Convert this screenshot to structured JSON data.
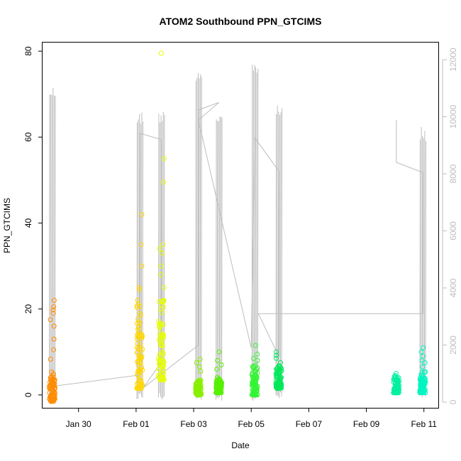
{
  "chart_data": {
    "type": "scatter",
    "title": "ATOM2 Southbound PPN_GTCIMS",
    "xlabel": "Date",
    "ylabel": "PPN_GTCIMS",
    "x_ticks": [
      "Jan 30",
      "Feb 01",
      "Feb 03",
      "Feb 05",
      "Feb 07",
      "Feb 09",
      "Feb 11"
    ],
    "x_range": [
      "2018-01-28 18:00",
      "2018-02-11 12:00"
    ],
    "y_ticks": [
      0,
      20,
      40,
      60,
      80
    ],
    "ylim": [
      -3,
      82
    ],
    "y2_ticks": [
      0,
      2000,
      4000,
      6000,
      8000,
      10000,
      12000
    ],
    "y2lim": [
      -200,
      12600
    ],
    "grid": false,
    "scatter_clusters": [
      {
        "date": "2018-01-29 02:00",
        "color": "#ff8c00",
        "min": -1.5,
        "max": 22,
        "median": 3,
        "extras": [
          22,
          20.5,
          19.8,
          19,
          17.5,
          16,
          13,
          10.5,
          8.3
        ]
      },
      {
        "date": "2018-02-01 03:00",
        "color": "#ffd700",
        "min": 1.5,
        "max": 42,
        "median": 12,
        "extras": [
          42,
          35,
          30,
          25,
          24.5,
          22,
          19,
          17
        ]
      },
      {
        "date": "2018-02-01 21:00",
        "color": "#e6ff00",
        "min": 3.5,
        "max": 79.5,
        "median": 13,
        "extras": [
          79.5,
          55,
          49.5,
          35,
          34,
          33,
          30,
          28,
          25,
          22
        ]
      },
      {
        "date": "2018-02-03 04:00",
        "color": "#88f000",
        "min": 0,
        "max": 8.5,
        "median": 2,
        "extras": [
          8.3,
          7.5,
          6.5,
          5.5
        ]
      },
      {
        "date": "2018-02-03 21:00",
        "color": "#55f000",
        "min": 0.5,
        "max": 10,
        "median": 2.5,
        "extras": [
          10,
          8,
          7,
          6
        ]
      },
      {
        "date": "2018-02-05 03:00",
        "color": "#33f533",
        "min": 0,
        "max": 11.5,
        "median": 4,
        "extras": [
          11.5,
          9.5,
          8.5,
          8
        ]
      },
      {
        "date": "2018-02-05 23:00",
        "color": "#00e85a",
        "min": 1.5,
        "max": 10,
        "median": 4,
        "extras": [
          10,
          9.2,
          8.5,
          7.5
        ]
      },
      {
        "date": "2018-02-10 01:00",
        "color": "#00f0a0",
        "min": 0.5,
        "max": 5,
        "median": 2.5,
        "extras": [
          5,
          4.5,
          4,
          3.2,
          2.4,
          1.8,
          1.2,
          0.8
        ]
      },
      {
        "date": "2018-02-10 23:00",
        "color": "#00f5c0",
        "min": 0.5,
        "max": 11,
        "median": 3,
        "extras": [
          11,
          10,
          9,
          8,
          7.5,
          6.5
        ]
      }
    ],
    "line_series": {
      "axis": "right",
      "color": "#bdbdbd",
      "spikes": [
        {
          "date": "2018-01-29 02:00",
          "peak": 11100
        },
        {
          "date": "2018-02-01 03:00",
          "peak": 10200
        },
        {
          "date": "2018-02-01 21:00",
          "peak": 10250
        },
        {
          "date": "2018-02-03 04:00",
          "peak": 11750
        },
        {
          "date": "2018-02-03 21:00",
          "peak": 10200
        },
        {
          "date": "2018-02-05 03:00",
          "peak": 11950
        },
        {
          "date": "2018-02-05 23:00",
          "peak": 10400
        },
        {
          "date": "2018-02-10 23:00",
          "peak": 9650
        }
      ],
      "path": [
        [
          "2018-01-29 02:00",
          550
        ],
        [
          "2018-02-01 03:00",
          950
        ],
        [
          "2018-02-01 03:00",
          9420
        ],
        [
          "2018-02-01 21:00",
          9200
        ],
        [
          "2018-02-01 21:00",
          1400
        ],
        [
          "2018-02-01 06:00",
          500
        ],
        [
          "2018-02-03 04:00",
          2000
        ],
        [
          "2018-02-03 04:00",
          10240
        ],
        [
          "2018-02-03 21:00",
          10500
        ],
        [
          "2018-02-03 04:00",
          9880
        ],
        [
          "2018-02-05 00:00",
          1900
        ],
        [
          "2018-02-05 03:00",
          9260
        ],
        [
          "2018-02-05 23:00",
          8100
        ],
        [
          "2018-02-05 23:00",
          1600
        ],
        [
          "2018-02-05 06:00",
          3100
        ],
        [
          "2018-02-10 23:00",
          3100
        ],
        [
          "2018-02-10 23:00",
          8050
        ],
        [
          "2018-02-10 01:00",
          8400
        ],
        [
          "2018-02-10 01:00",
          9880
        ]
      ]
    }
  }
}
